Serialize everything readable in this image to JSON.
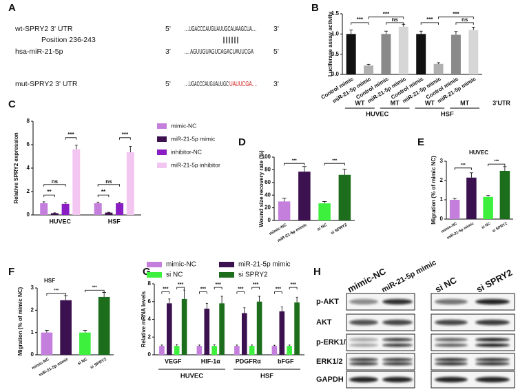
{
  "sequence_panel": {
    "label": "A",
    "rows": [
      {
        "name": "wt-SPRY2 3' UTR",
        "end5": "5'",
        "seq": "....UGACCCAUGUAUUGCAUAAGCUA....",
        "end3": "3'"
      },
      {
        "name": "hsa-miR-21-5p",
        "end5": "3'",
        "seq": "....  AGUUGUAGUCAGACUAUUCGA",
        "end3": "5'"
      },
      {
        "name": "mut-SPRY2 3' UTR",
        "end5": "5'",
        "seq": "....UGACCCAUGUAUUGC",
        "seq_mut": "UAUUCGA....",
        "end3": "3'"
      }
    ],
    "position": "Position 236-243",
    "pairing": "||||||"
  },
  "chart_data": [
    {
      "label": "B",
      "type": "bar",
      "ylabel": "Luciferase assay activity",
      "categories": [
        "Control mimic",
        "miR-21-5p mimic",
        "Control mimic",
        "miR-21-5p mimic",
        "Control mimic",
        "miR-21-5p mimic",
        "Control mimic",
        "miR-21-5p mimic"
      ],
      "values": [
        1.0,
        0.22,
        1.0,
        1.18,
        1.0,
        0.26,
        0.98,
        1.1
      ],
      "errors": [
        0.1,
        0.03,
        0.07,
        0.06,
        0.07,
        0.03,
        0.08,
        0.07
      ],
      "colors": [
        "#111111",
        "#b0b0b0",
        "#8a8a8a",
        "#d6d6d6",
        "#111111",
        "#b0b0b0",
        "#8a8a8a",
        "#d6d6d6"
      ],
      "ylim": [
        0,
        1.5
      ],
      "yticks": [
        {
          "value": 0,
          "label": "0.0"
        },
        {
          "value": 0.5,
          "label": "0.5"
        },
        {
          "value": 1,
          "label": "1.0"
        },
        {
          "value": 1.5,
          "label": "1.5"
        }
      ],
      "significance": [
        "***",
        "***",
        "ns",
        "***",
        "***",
        "ns"
      ],
      "subgroups": [
        "WT",
        "MT",
        "WT",
        "MT"
      ],
      "groups": [
        "HUVEC",
        "HSF"
      ],
      "group_axis_label": "3'UTR"
    },
    {
      "label": "C",
      "type": "bar",
      "ylabel": "Relative SPRY2 expression",
      "categories": [
        "HUVEC",
        "HSF"
      ],
      "series": [
        {
          "name": "mimic-NC",
          "color": "#c47fdd",
          "values": [
            1.0,
            1.0
          ],
          "errors": [
            0.12,
            0.1
          ]
        },
        {
          "name": "miR-21-5p mimic",
          "color": "#3c1150",
          "values": [
            0.15,
            0.2
          ],
          "errors": [
            0.03,
            0.03
          ]
        },
        {
          "name": "inhibitor-NC",
          "color": "#8a1cc4",
          "values": [
            0.95,
            1.0
          ],
          "errors": [
            0.1,
            0.08
          ]
        },
        {
          "name": "miR-21-5p inhibitor",
          "color": "#f3c6f1",
          "values": [
            5.6,
            5.35
          ],
          "errors": [
            0.35,
            0.5
          ]
        }
      ],
      "ylim": [
        0,
        8
      ],
      "yticks": [
        0,
        2,
        4,
        6,
        8
      ],
      "significance": [
        "**",
        "ns",
        "***",
        "**",
        "ns",
        "***"
      ]
    },
    {
      "label": "D",
      "type": "bar",
      "ylabel": "Wound size recovery rate (%)",
      "categories": [
        "mimic-NC",
        "miR-21-5p mimic",
        "si NC",
        "si SPRY2"
      ],
      "values": [
        30,
        77,
        27,
        72
      ],
      "errors": [
        5,
        8,
        3,
        9
      ],
      "colors": [
        "#c47fdd",
        "#3c1150",
        "#3ef03e",
        "#1c6e1c"
      ],
      "ylim": [
        0,
        100
      ],
      "yticks": [
        0,
        20,
        40,
        60,
        80,
        100
      ],
      "significance": [
        "***",
        "***"
      ]
    },
    {
      "label": "E",
      "type": "bar",
      "title": "HUVEC",
      "ylabel": "Migration (% of mimic NC)",
      "categories": [
        "mimic-NC",
        "miR-21-5p mimic",
        "si NC",
        "si SPRY2"
      ],
      "values": [
        1.0,
        2.15,
        1.15,
        2.5
      ],
      "errors": [
        0.07,
        0.25,
        0.08,
        0.22
      ],
      "colors": [
        "#c47fdd",
        "#3c1150",
        "#3ef03e",
        "#1c6e1c"
      ],
      "ylim": [
        0,
        3
      ],
      "yticks": [
        0,
        1,
        2,
        3
      ],
      "significance": [
        "***",
        "***"
      ]
    },
    {
      "label": "F",
      "type": "bar",
      "title": "HSF",
      "ylabel": "Migration (% of mimic NC)",
      "categories": [
        "mimic-NC",
        "miR-21-5p mimic",
        "si NC",
        "si SPRY2"
      ],
      "values": [
        1.0,
        2.45,
        1.0,
        2.6
      ],
      "errors": [
        0.1,
        0.2,
        0.1,
        0.2
      ],
      "colors": [
        "#c47fdd",
        "#3c1150",
        "#3ef03e",
        "#1c6e1c"
      ],
      "ylim": [
        0,
        3
      ],
      "yticks": [
        0,
        1,
        2,
        3
      ],
      "significance": [
        "***",
        "***"
      ]
    },
    {
      "label": "G",
      "type": "bar",
      "ylabel": "Relative mRNA levels",
      "categories": [
        "VEGF",
        "HIF-1α",
        "PDGFRα",
        "bFGF"
      ],
      "series": [
        {
          "name": "mimic-NC",
          "color": "#c47fdd",
          "values": [
            1,
            1,
            1,
            1
          ],
          "errors": [
            0.1,
            0.1,
            0.1,
            0.08
          ]
        },
        {
          "name": "miR-21-5p mimic",
          "color": "#3c1150",
          "values": [
            5.8,
            5.2,
            4.7,
            4.9
          ],
          "errors": [
            0.5,
            0.6,
            0.6,
            0.5
          ]
        },
        {
          "name": "si NC",
          "color": "#3ef03e",
          "values": [
            1,
            1,
            1,
            1
          ],
          "errors": [
            0.15,
            0.12,
            0.1,
            0.1
          ]
        },
        {
          "name": "si SPRY2",
          "color": "#1c6e1c",
          "values": [
            6.3,
            5.8,
            6.0,
            5.9
          ],
          "errors": [
            1.0,
            0.8,
            0.6,
            0.6
          ]
        }
      ],
      "ylim": [
        0,
        8
      ],
      "yticks": [
        0,
        2,
        4,
        6,
        8
      ],
      "significance": [
        "***",
        "***",
        "***",
        "***",
        "***",
        "***",
        "***",
        "***"
      ],
      "groups": [
        "HUVEC",
        "HSF"
      ]
    }
  ],
  "blot_panel": {
    "label": "H",
    "lanes": [
      "mimic-NC",
      "miR-21-5p mimic",
      "si NC",
      "si SPRY2"
    ],
    "rows": [
      "p-AKT",
      "AKT",
      "p-ERK1/2",
      "ERK1/2",
      "GAPDH"
    ]
  }
}
